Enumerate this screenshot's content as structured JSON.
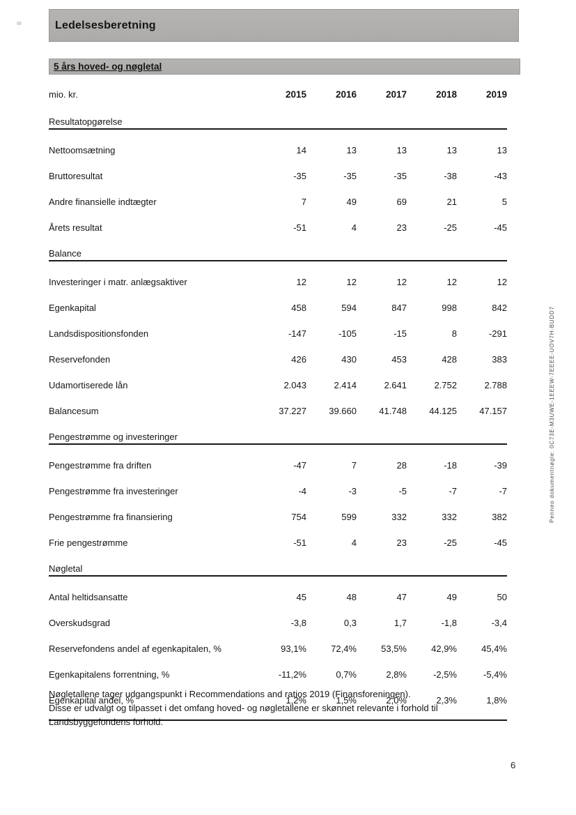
{
  "page": {
    "title": "Ledelsesberetning",
    "section_title": "5 års hoved- og nøgletal",
    "page_number": "6",
    "sidebar_text": "Penneo dokumentnøgle: 0C73E-M3UWE-1EEEW-7EEEE-UOV7H-BUDD7",
    "footnote_lines": [
      "Nøgletallene tager udgangspunkt i Recommendations and ratios 2019 (Finansforeningen).",
      "Disse er udvalgt og tilpasset i det omfang hoved- og nøgletallene er skønnet relevante i forhold til",
      "Landsbyggefondens forhold."
    ]
  },
  "table": {
    "unit_label": "mio. kr.",
    "years": [
      "2015",
      "2016",
      "2017",
      "2018",
      "2019"
    ],
    "sections": [
      {
        "name": "Resultatopgørelse",
        "rows": [
          {
            "label": "Nettoomsætning",
            "values": [
              "14",
              "13",
              "13",
              "13",
              "13"
            ]
          },
          {
            "label": "Bruttoresultat",
            "values": [
              "-35",
              "-35",
              "-35",
              "-38",
              "-43"
            ]
          },
          {
            "label": "Andre finansielle indtægter",
            "values": [
              "7",
              "49",
              "69",
              "21",
              "5"
            ]
          },
          {
            "label": "Årets resultat",
            "values": [
              "-51",
              "4",
              "23",
              "-25",
              "-45"
            ]
          }
        ]
      },
      {
        "name": "Balance",
        "rows": [
          {
            "label": "Investeringer i matr. anlægsaktiver",
            "values": [
              "12",
              "12",
              "12",
              "12",
              "12"
            ]
          },
          {
            "label": "Egenkapital",
            "values": [
              "458",
              "594",
              "847",
              "998",
              "842"
            ]
          },
          {
            "label": "Landsdispositionsfonden",
            "values": [
              "-147",
              "-105",
              "-15",
              "8",
              "-291"
            ]
          },
          {
            "label": "Reservefonden",
            "values": [
              "426",
              "430",
              "453",
              "428",
              "383"
            ]
          },
          {
            "label": "Udamortiserede lån",
            "values": [
              "2.043",
              "2.414",
              "2.641",
              "2.752",
              "2.788"
            ]
          },
          {
            "label": "Balancesum",
            "values": [
              "37.227",
              "39.660",
              "41.748",
              "44.125",
              "47.157"
            ]
          }
        ]
      },
      {
        "name": "Pengestrømme og investeringer",
        "rows": [
          {
            "label": "Pengestrømme fra driften",
            "values": [
              "-47",
              "7",
              "28",
              "-18",
              "-39"
            ]
          },
          {
            "label": "Pengestrømme fra investeringer",
            "values": [
              "-4",
              "-3",
              "-5",
              "-7",
              "-7"
            ]
          },
          {
            "label": "Pengestrømme fra finansiering",
            "values": [
              "754",
              "599",
              "332",
              "332",
              "382"
            ]
          },
          {
            "label": "Frie pengestrømme",
            "values": [
              "-51",
              "4",
              "23",
              "-25",
              "-45"
            ]
          }
        ]
      },
      {
        "name": "Nøgletal",
        "rows": [
          {
            "label": "Antal heltidsansatte",
            "values": [
              "45",
              "48",
              "47",
              "49",
              "50"
            ]
          },
          {
            "label": "Overskudsgrad",
            "values": [
              "-3,8",
              "0,3",
              "1,7",
              "-1,8",
              "-3,4"
            ]
          },
          {
            "label": "Reservefondens andel af egenkapitalen, %",
            "values": [
              "93,1%",
              "72,4%",
              "53,5%",
              "42,9%",
              "45,4%"
            ]
          },
          {
            "label": "Egenkapitalens forrentning, %",
            "values": [
              "-11,2%",
              "0,7%",
              "2,8%",
              "-2,5%",
              "-5,4%"
            ]
          },
          {
            "label": "Egenkapital andel, %",
            "values": [
              "1,2%",
              "1,5%",
              "2,0%",
              "2,3%",
              "1,8%"
            ]
          }
        ]
      }
    ]
  },
  "colors": {
    "banner_bg": "#b0afad",
    "rule": "#1a1a1a",
    "text": "#161616",
    "sidebar_text_color": "#4a4a4a"
  }
}
